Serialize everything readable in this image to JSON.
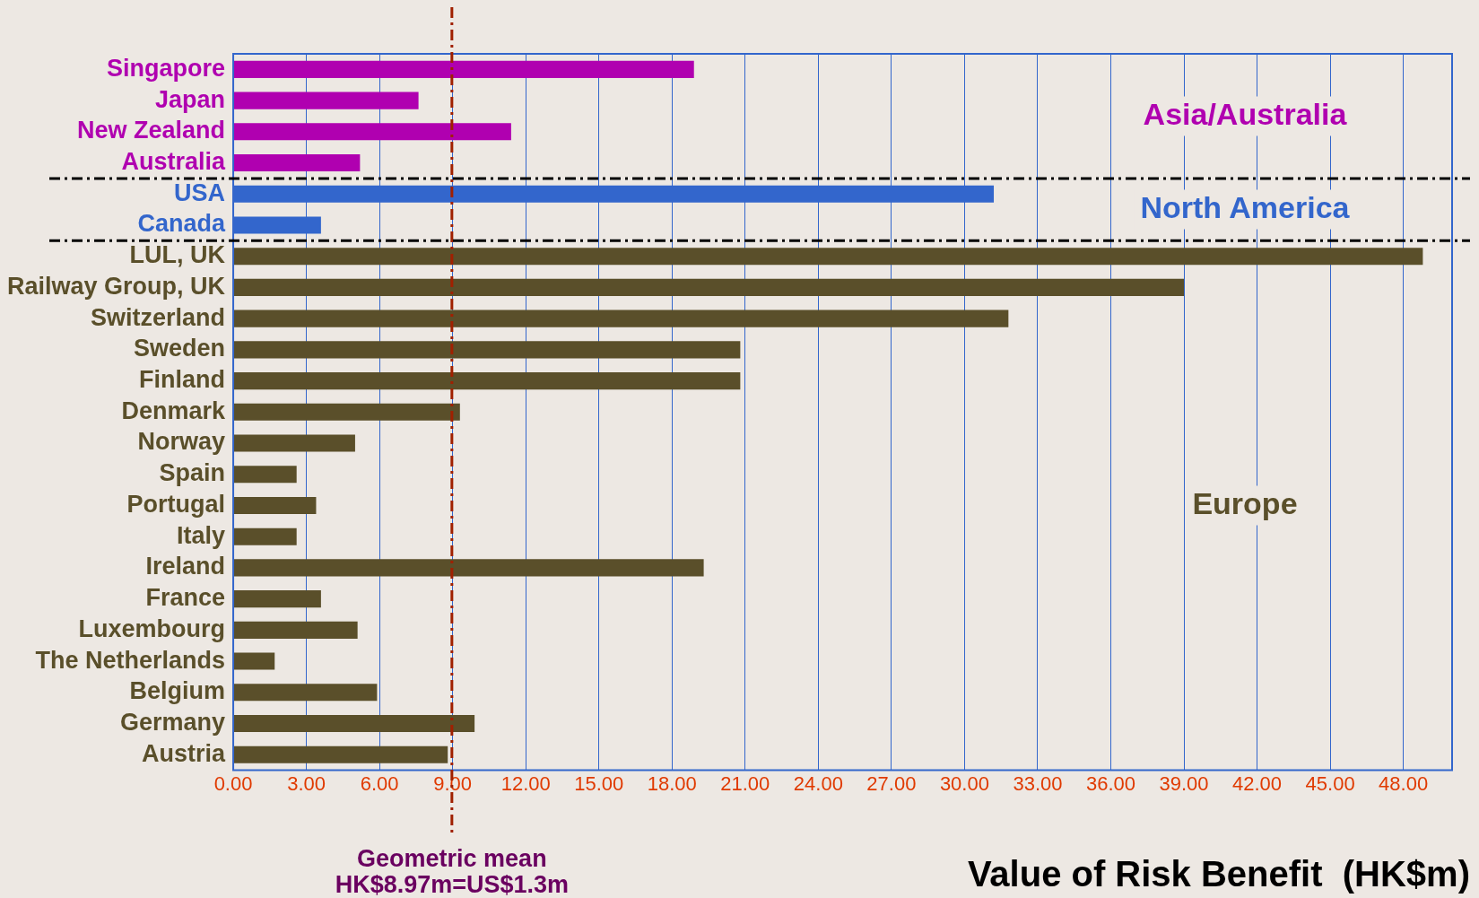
{
  "chart_data": {
    "type": "bar",
    "orientation": "horizontal",
    "categories": [
      "Singapore",
      "Japan",
      "New Zealand",
      "Australia",
      "USA",
      "Canada",
      "LUL, UK",
      "Railway Group, UK",
      "Switzerland",
      "Sweden",
      "Finland",
      "Denmark",
      "Norway",
      "Spain",
      "Portugal",
      "Italy",
      "Ireland",
      "France",
      "Luxembourg",
      "The Netherlands",
      "Belgium",
      "Germany",
      "Austria"
    ],
    "values": [
      18.9,
      7.6,
      11.4,
      5.2,
      31.2,
      3.6,
      48.8,
      39.0,
      31.8,
      20.8,
      20.8,
      9.3,
      5.0,
      2.6,
      3.4,
      2.6,
      19.3,
      3.6,
      5.1,
      1.7,
      5.9,
      9.9,
      8.8
    ],
    "colors": [
      "#b000b0",
      "#b000b0",
      "#b000b0",
      "#b000b0",
      "#3366cc",
      "#3366cc",
      "#5a4f2a",
      "#5a4f2a",
      "#5a4f2a",
      "#5a4f2a",
      "#5a4f2a",
      "#5a4f2a",
      "#5a4f2a",
      "#5a4f2a",
      "#5a4f2a",
      "#5a4f2a",
      "#5a4f2a",
      "#5a4f2a",
      "#5a4f2a",
      "#5a4f2a",
      "#5a4f2a",
      "#5a4f2a",
      "#5a4f2a"
    ],
    "xlim": [
      0,
      50
    ],
    "xticks": [
      {
        "value": 0,
        "label": "0.00"
      },
      {
        "value": 3,
        "label": "3.00"
      },
      {
        "value": 6,
        "label": "6.00"
      },
      {
        "value": 9,
        "label": "9.00"
      },
      {
        "value": 12,
        "label": "12.00"
      },
      {
        "value": 15,
        "label": "15.00"
      },
      {
        "value": 18,
        "label": "18.00"
      },
      {
        "value": 21,
        "label": "21.00"
      },
      {
        "value": 24,
        "label": "24.00"
      },
      {
        "value": 27,
        "label": "27.00"
      },
      {
        "value": 30,
        "label": "30.00"
      },
      {
        "value": 33,
        "label": "33.00"
      },
      {
        "value": 36,
        "label": "36.00"
      },
      {
        "value": 39,
        "label": "39.00"
      },
      {
        "value": 42,
        "label": "42.00"
      },
      {
        "value": 45,
        "label": "45.00"
      },
      {
        "value": 48,
        "label": "48.00"
      }
    ],
    "xlabel": "Value of Risk Benefit  (HK$m)",
    "grid": "x",
    "legend": false,
    "ref_lines": [
      {
        "axis": "x",
        "value": 8.97,
        "label": "Geometric mean\nHK$8.97m=US$1.3m",
        "color": "#a02000",
        "line_style": "dashed"
      },
      {
        "axis": "y",
        "value": "Australia",
        "color": "#000000",
        "line_style": "dashed"
      },
      {
        "axis": "y",
        "value": "Canada",
        "color": "#000000",
        "line_style": "dashed"
      }
    ],
    "annotations": [
      "Asia/Australia",
      "North America",
      "Europe"
    ]
  }
}
